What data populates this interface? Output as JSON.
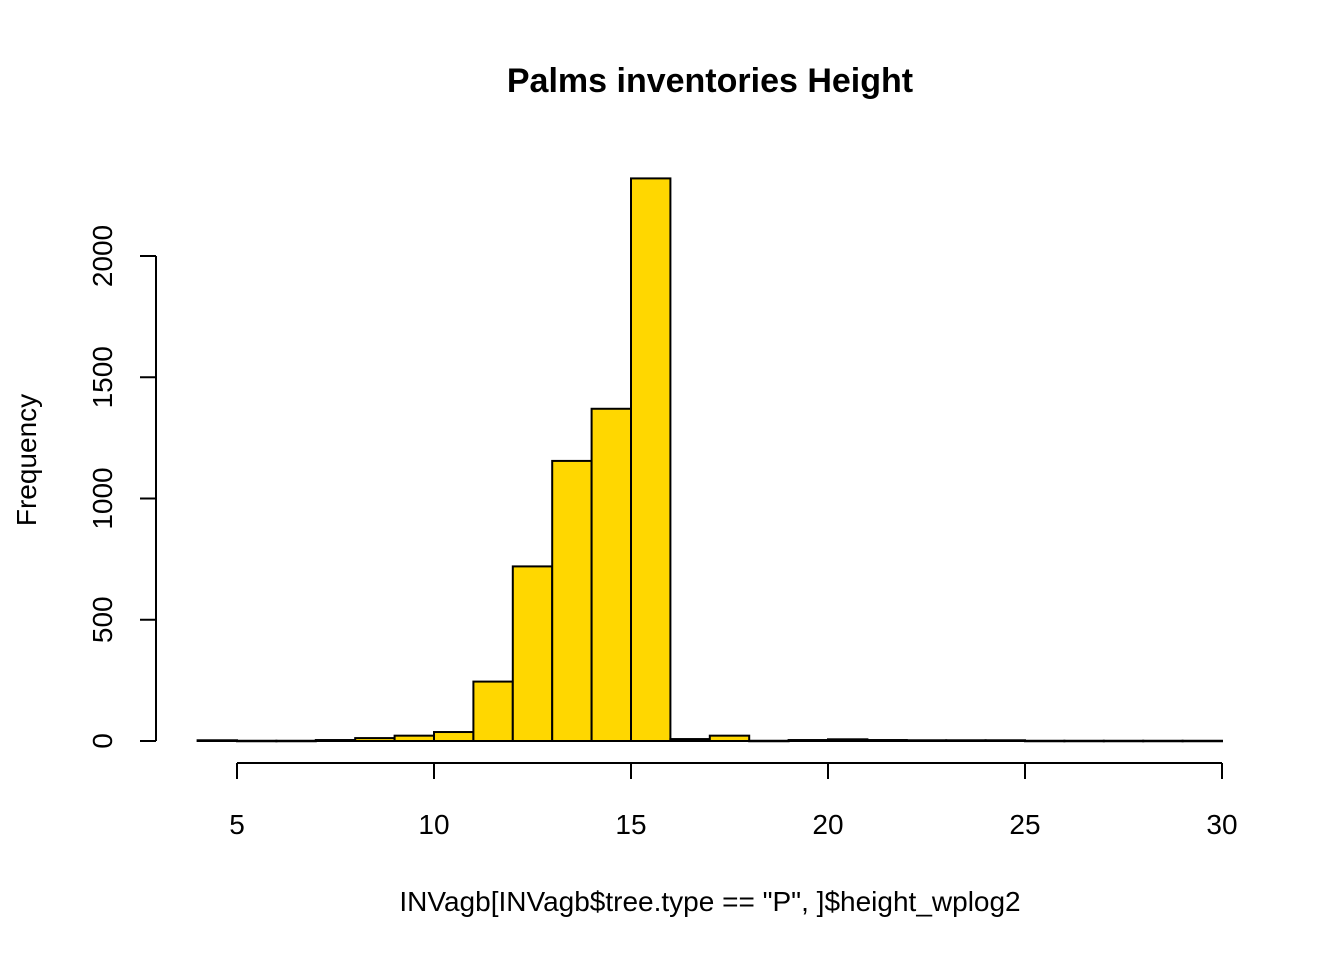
{
  "chart_data": {
    "type": "bar",
    "title": "Palms inventories Height",
    "xlabel": "INVagb[INVagb$tree.type == \"P\", ]$height_wplog2",
    "ylabel": "Frequency",
    "bin_width": 1,
    "bins": [
      {
        "x0": 4,
        "x1": 5,
        "value": 3
      },
      {
        "x0": 5,
        "x1": 6,
        "value": 1
      },
      {
        "x0": 6,
        "x1": 7,
        "value": 1
      },
      {
        "x0": 7,
        "x1": 8,
        "value": 4
      },
      {
        "x0": 8,
        "x1": 9,
        "value": 12
      },
      {
        "x0": 9,
        "x1": 10,
        "value": 22
      },
      {
        "x0": 10,
        "x1": 11,
        "value": 37
      },
      {
        "x0": 11,
        "x1": 12,
        "value": 245
      },
      {
        "x0": 12,
        "x1": 13,
        "value": 720
      },
      {
        "x0": 13,
        "x1": 14,
        "value": 1155
      },
      {
        "x0": 14,
        "x1": 15,
        "value": 1370
      },
      {
        "x0": 15,
        "x1": 16,
        "value": 2320
      },
      {
        "x0": 16,
        "x1": 17,
        "value": 8
      },
      {
        "x0": 17,
        "x1": 18,
        "value": 22
      },
      {
        "x0": 18,
        "x1": 19,
        "value": 1
      },
      {
        "x0": 19,
        "x1": 20,
        "value": 4
      },
      {
        "x0": 20,
        "x1": 21,
        "value": 7
      },
      {
        "x0": 21,
        "x1": 22,
        "value": 4
      },
      {
        "x0": 22,
        "x1": 23,
        "value": 3
      },
      {
        "x0": 23,
        "x1": 24,
        "value": 3
      },
      {
        "x0": 24,
        "x1": 25,
        "value": 3
      },
      {
        "x0": 25,
        "x1": 26,
        "value": 1
      },
      {
        "x0": 26,
        "x1": 27,
        "value": 1
      },
      {
        "x0": 27,
        "x1": 28,
        "value": 1
      },
      {
        "x0": 28,
        "x1": 29,
        "value": 1
      },
      {
        "x0": 29,
        "x1": 30,
        "value": 1
      }
    ],
    "xticks": [
      5,
      10,
      15,
      20,
      25,
      30
    ],
    "yticks": [
      0,
      500,
      1000,
      1500,
      2000
    ],
    "xlim": [
      4,
      30
    ],
    "ylim": [
      0,
      2320
    ],
    "grid": false,
    "bar_color": "#FFD700",
    "border_color": "#000000"
  }
}
